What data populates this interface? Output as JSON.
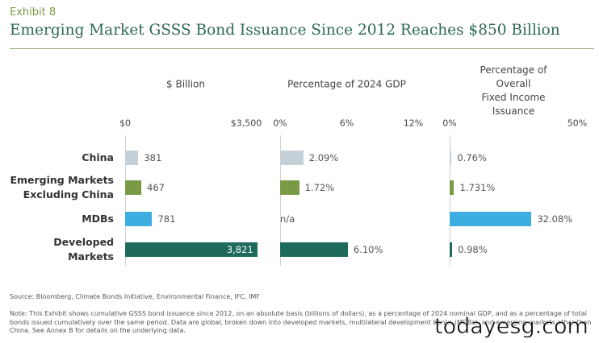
{
  "exhibit": "Exhibit 8",
  "title": "Emerging Market GSSS Bond Issuance Since 2012 Reaches $850 Billion",
  "categories": [
    "China",
    "Emerging Markets\nExcluding China",
    "MDBs",
    "Developed\nMarkets"
  ],
  "category_colors": [
    "#c4cfd7",
    "#7b9a46",
    "#3eade0",
    "#1e6b5c"
  ],
  "chart_data": [
    {
      "type": "bar",
      "orientation": "horizontal",
      "title": "$ Billion",
      "xlim": [
        0,
        3500
      ],
      "xticks": [
        {
          "value": 0,
          "label": "$0"
        },
        {
          "value": 3500,
          "label": "$3,500"
        }
      ],
      "values": [
        381,
        467,
        781,
        3821
      ],
      "value_labels": [
        "381",
        "467",
        "781",
        "3,821"
      ]
    },
    {
      "type": "bar",
      "orientation": "horizontal",
      "title": "Percentage of 2024 GDP",
      "xlim": [
        0,
        12
      ],
      "xticks": [
        {
          "value": 0,
          "label": "0%"
        },
        {
          "value": 6,
          "label": "6%"
        },
        {
          "value": 12,
          "label": "12%"
        }
      ],
      "values": [
        2.09,
        1.72,
        null,
        6.1
      ],
      "value_labels": [
        "2.09%",
        "1.72%",
        "n/a",
        "6.10%"
      ]
    },
    {
      "type": "bar",
      "orientation": "horizontal",
      "title": "Percentage of Overall\nFixed Income Issuance",
      "xlim": [
        0,
        50
      ],
      "xticks": [
        {
          "value": 0,
          "label": "0%"
        },
        {
          "value": 50,
          "label": "50%"
        }
      ],
      "values": [
        0.76,
        1.731,
        32.08,
        0.98
      ],
      "value_labels": [
        "0.76%",
        "1.731%",
        "32.08%",
        "0.98%"
      ]
    }
  ],
  "source": "Source: Bloomberg, Climate Bonds Initiative, Environmental Finance, IFC, IMF",
  "note": "Note: This Exhibit shows cumulative GSSS bond issuance since 2012, on an absolute basis (billions of dollars), as a percentage of 2024 nominal GDP, and as a percentage of total bonds issued cumulatively over the same period. Data are global, broken down into developed markets, multilateral development banks (MDBs), and emerging markets other than China. See Annex B for details on the underlying data.",
  "watermark": "todayesg.com"
}
